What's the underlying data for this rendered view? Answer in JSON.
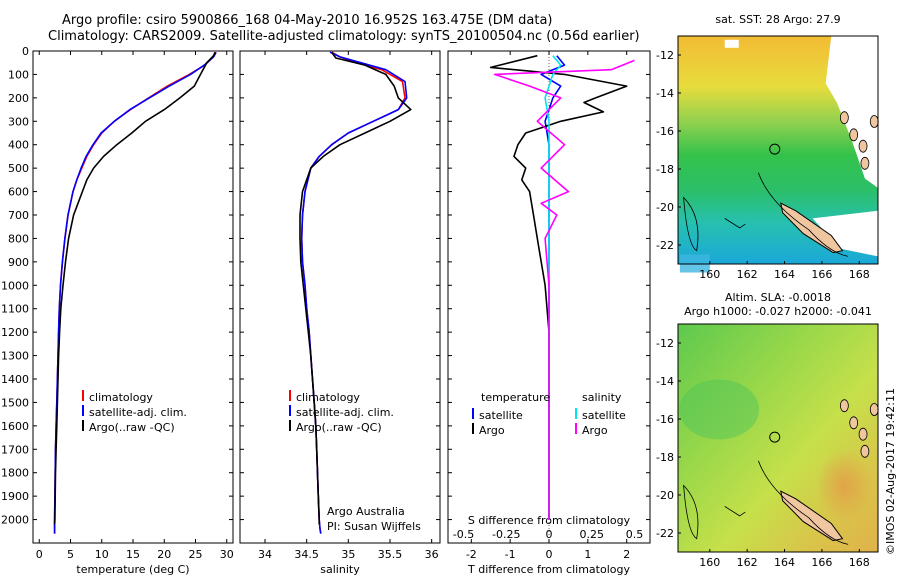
{
  "header": {
    "line1": "Argo profile: csiro 5900866_168 04-May-2010 16.952S 163.475E (DM data)",
    "line2": "Climatology: CARS2009. Satellite-adjusted climatology: synTS_20100504.nc (0.56d earlier)"
  },
  "colors": {
    "climatology": "#ff0000",
    "satellite": "#0000ff",
    "argo": "#000000",
    "salinity_sat": "#00e5ee",
    "salinity_argo": "#ff00ff"
  },
  "depth_axis": {
    "ylim": [
      0,
      2100
    ],
    "ticks": [
      0,
      100,
      200,
      300,
      400,
      500,
      600,
      700,
      800,
      900,
      1000,
      1100,
      1200,
      1300,
      1400,
      1500,
      1600,
      1700,
      1800,
      1900,
      2000
    ]
  },
  "chart_data": [
    {
      "type": "line",
      "id": "temperature",
      "xlabel": "temperature (deg C)",
      "xlim": [
        -1,
        31
      ],
      "xticks": [
        0,
        5,
        10,
        15,
        20,
        25,
        30
      ],
      "legend": [
        "climatology",
        "satellite-adj. clim.",
        "Argo(..raw -QC)"
      ],
      "series": [
        {
          "name": "climatology",
          "color": "#ff0000",
          "x": [
            28.1,
            27.8,
            26.5,
            24,
            20.5,
            17.5,
            14.6,
            12,
            10,
            8.7,
            7.6,
            6.8,
            6,
            5.4,
            4.6,
            4.1,
            3.7,
            3.4,
            3.2,
            3.1,
            3,
            2.9,
            2.8,
            2.7,
            2.6,
            2.55,
            2.5,
            2.45,
            2.45
          ],
          "y": [
            5,
            25,
            60,
            100,
            150,
            200,
            250,
            300,
            350,
            400,
            450,
            500,
            550,
            600,
            700,
            800,
            900,
            1000,
            1100,
            1200,
            1300,
            1400,
            1500,
            1600,
            1700,
            1800,
            1900,
            2000,
            2060
          ]
        },
        {
          "name": "satellite-adj. clim.",
          "color": "#0000ff",
          "x": [
            28.3,
            27.9,
            26.4,
            24.2,
            20.8,
            17.6,
            14.5,
            12,
            9.9,
            8.6,
            7.5,
            6.7,
            6,
            5.4,
            4.6,
            4.1,
            3.7,
            3.4,
            3.2,
            3.1,
            3,
            2.9,
            2.8,
            2.7,
            2.6,
            2.55,
            2.5,
            2.45,
            2.45
          ],
          "y": [
            5,
            25,
            60,
            100,
            150,
            200,
            250,
            300,
            350,
            400,
            450,
            500,
            550,
            600,
            700,
            800,
            900,
            1000,
            1100,
            1200,
            1300,
            1400,
            1500,
            1600,
            1700,
            1800,
            1900,
            2000,
            2060
          ]
        },
        {
          "name": "Argo(..raw -QC)",
          "color": "#000000",
          "x": [
            28.2,
            27.9,
            26.8,
            25.8,
            24.8,
            22.5,
            20,
            17,
            14.8,
            12.4,
            10.3,
            8.7,
            7.6,
            6.9,
            6.2,
            5.5,
            4.7,
            4.2,
            3.8,
            3.45,
            3.25,
            3.1,
            3,
            2.9,
            2.8,
            2.7,
            2.6,
            2.55,
            2.5,
            2.45
          ],
          "y": [
            5,
            20,
            50,
            100,
            150,
            200,
            250,
            300,
            350,
            400,
            450,
            500,
            550,
            600,
            650,
            700,
            800,
            900,
            1000,
            1100,
            1200,
            1300,
            1400,
            1500,
            1600,
            1700,
            1800,
            1900,
            2000,
            2020
          ]
        }
      ]
    },
    {
      "type": "line",
      "id": "salinity",
      "xlabel": "salinity",
      "xlim": [
        33.7,
        36.1
      ],
      "xticks": [
        34,
        34.5,
        35,
        35.5,
        36
      ],
      "legend": [
        "climatology",
        "satellite-adj. clim.",
        "Argo(..raw -QC)"
      ],
      "note": [
        "Argo Australia",
        "PI: Susan Wijffels"
      ],
      "series": [
        {
          "name": "climatology",
          "color": "#ff0000",
          "x": [
            34.8,
            34.9,
            35.1,
            35.4,
            35.65,
            35.68,
            35.6,
            35.3,
            35,
            34.8,
            34.65,
            34.55,
            34.48,
            34.45,
            34.44,
            34.45,
            34.48,
            34.5,
            34.53,
            34.55,
            34.57,
            34.59,
            34.61,
            34.62,
            34.63,
            34.64,
            34.65,
            34.66,
            34.67
          ],
          "y": [
            5,
            25,
            50,
            80,
            130,
            200,
            250,
            300,
            350,
            400,
            450,
            500,
            600,
            700,
            800,
            900,
            1000,
            1100,
            1200,
            1300,
            1400,
            1500,
            1600,
            1700,
            1800,
            1900,
            2000,
            2040,
            2060
          ]
        },
        {
          "name": "satellite-adj. clim.",
          "color": "#0000ff",
          "x": [
            34.78,
            34.9,
            35.15,
            35.45,
            35.68,
            35.7,
            35.6,
            35.3,
            35,
            34.8,
            34.65,
            34.55,
            34.48,
            34.45,
            34.44,
            34.45,
            34.48,
            34.5,
            34.53,
            34.55,
            34.57,
            34.59,
            34.61,
            34.62,
            34.63,
            34.64,
            34.65,
            34.66,
            34.67
          ],
          "y": [
            5,
            25,
            50,
            80,
            130,
            200,
            250,
            300,
            350,
            400,
            450,
            500,
            600,
            700,
            800,
            900,
            1000,
            1100,
            1200,
            1300,
            1400,
            1500,
            1600,
            1700,
            1800,
            1900,
            2000,
            2040,
            2060
          ]
        },
        {
          "name": "Argo(..raw -QC)",
          "color": "#000000",
          "x": [
            34.8,
            34.85,
            35.2,
            35.45,
            35.55,
            35.6,
            35.75,
            35.5,
            35.2,
            34.9,
            34.7,
            34.55,
            34.45,
            34.42,
            34.42,
            34.43,
            34.46,
            34.49,
            34.52,
            34.55,
            34.57,
            34.59,
            34.61,
            34.62,
            34.63,
            34.64,
            34.65,
            34.65
          ],
          "y": [
            5,
            30,
            60,
            100,
            150,
            200,
            250,
            300,
            350,
            400,
            450,
            500,
            600,
            700,
            800,
            900,
            1000,
            1100,
            1200,
            1300,
            1400,
            1500,
            1600,
            1700,
            1800,
            1900,
            2000,
            2020
          ]
        }
      ]
    },
    {
      "type": "line",
      "id": "difference",
      "xlabel": "T difference from climatology",
      "xlabel_top": "S difference from climatology",
      "xlim": [
        -2.6,
        2.6
      ],
      "xticks": [
        -2,
        -1,
        0,
        1,
        2
      ],
      "xticks_S": [
        -0.5,
        -0.25,
        0,
        0.25,
        0.5
      ],
      "legend_titles": [
        "temperature",
        "salinity"
      ],
      "legend": [
        "satellite",
        "Argo",
        "satellite",
        "Argo"
      ],
      "series": [
        {
          "name": "temperature satellite",
          "color": "#0000ff",
          "x": [
            0.2,
            0.4,
            -0.2,
            0.3,
            0.1,
            0,
            -0.1,
            0,
            0,
            0,
            0,
            0,
            0,
            0,
            0,
            0
          ],
          "y": [
            20,
            60,
            100,
            150,
            200,
            250,
            300,
            400,
            500,
            700,
            900,
            1100,
            1300,
            1500,
            1800,
            2000
          ]
        },
        {
          "name": "temperature Argo",
          "color": "#000000",
          "x": [
            -0.3,
            -1.5,
            0.4,
            2.0,
            1.2,
            0.9,
            1.4,
            0.3,
            -0.6,
            -0.8,
            -0.9,
            -0.6,
            -0.7,
            -0.5,
            -0.4,
            -0.3,
            -0.2,
            -0.1,
            0,
            0,
            0,
            0
          ],
          "y": [
            20,
            70,
            100,
            150,
            200,
            220,
            260,
            300,
            350,
            400,
            450,
            500,
            550,
            600,
            700,
            800,
            900,
            1000,
            1200,
            1500,
            1800,
            2000
          ]
        },
        {
          "name": "salinity satellite",
          "color": "#00e5ee",
          "x": [
            0.1,
            0.3,
            0.1,
            0,
            -0.1,
            0,
            0,
            0,
            0,
            0,
            0,
            0
          ],
          "y": [
            20,
            60,
            100,
            150,
            200,
            300,
            400,
            600,
            900,
            1300,
            1700,
            2000
          ]
        },
        {
          "name": "salinity Argo",
          "color": "#ff00ff",
          "x": [
            2.2,
            1.6,
            -1.4,
            -0.5,
            0.3,
            -0.3,
            0.4,
            -0.2,
            0.5,
            -0.2,
            0.2,
            -0.1,
            0,
            0,
            0
          ],
          "y": [
            40,
            80,
            100,
            150,
            200,
            300,
            400,
            500,
            600,
            650,
            700,
            800,
            1000,
            1500,
            2000
          ]
        }
      ]
    },
    {
      "type": "heatmap",
      "id": "sst-map",
      "title": "sat. SST: 28 Argo: 27.9",
      "xticks": [
        160,
        162,
        164,
        166,
        168
      ],
      "yticks": [
        -12,
        -14,
        -16,
        -18,
        -20,
        -22
      ],
      "xlim": [
        158.3,
        169
      ],
      "ylim": [
        -23,
        -11
      ],
      "profile_location": [
        163.475,
        -16.952
      ]
    },
    {
      "type": "heatmap",
      "id": "sla-map",
      "title": "Altim. SLA: -0.0018",
      "subtitle": "Argo h1000: -0.027 h2000: -0.041",
      "xticks": [
        160,
        162,
        164,
        166,
        168
      ],
      "yticks": [
        -12,
        -14,
        -16,
        -18,
        -20,
        -22
      ],
      "xlim": [
        158.3,
        169
      ],
      "ylim": [
        -23,
        -11
      ],
      "profile_location": [
        163.475,
        -16.952
      ]
    }
  ],
  "credit": "©IMOS 02-Aug-2017 19:42:11"
}
